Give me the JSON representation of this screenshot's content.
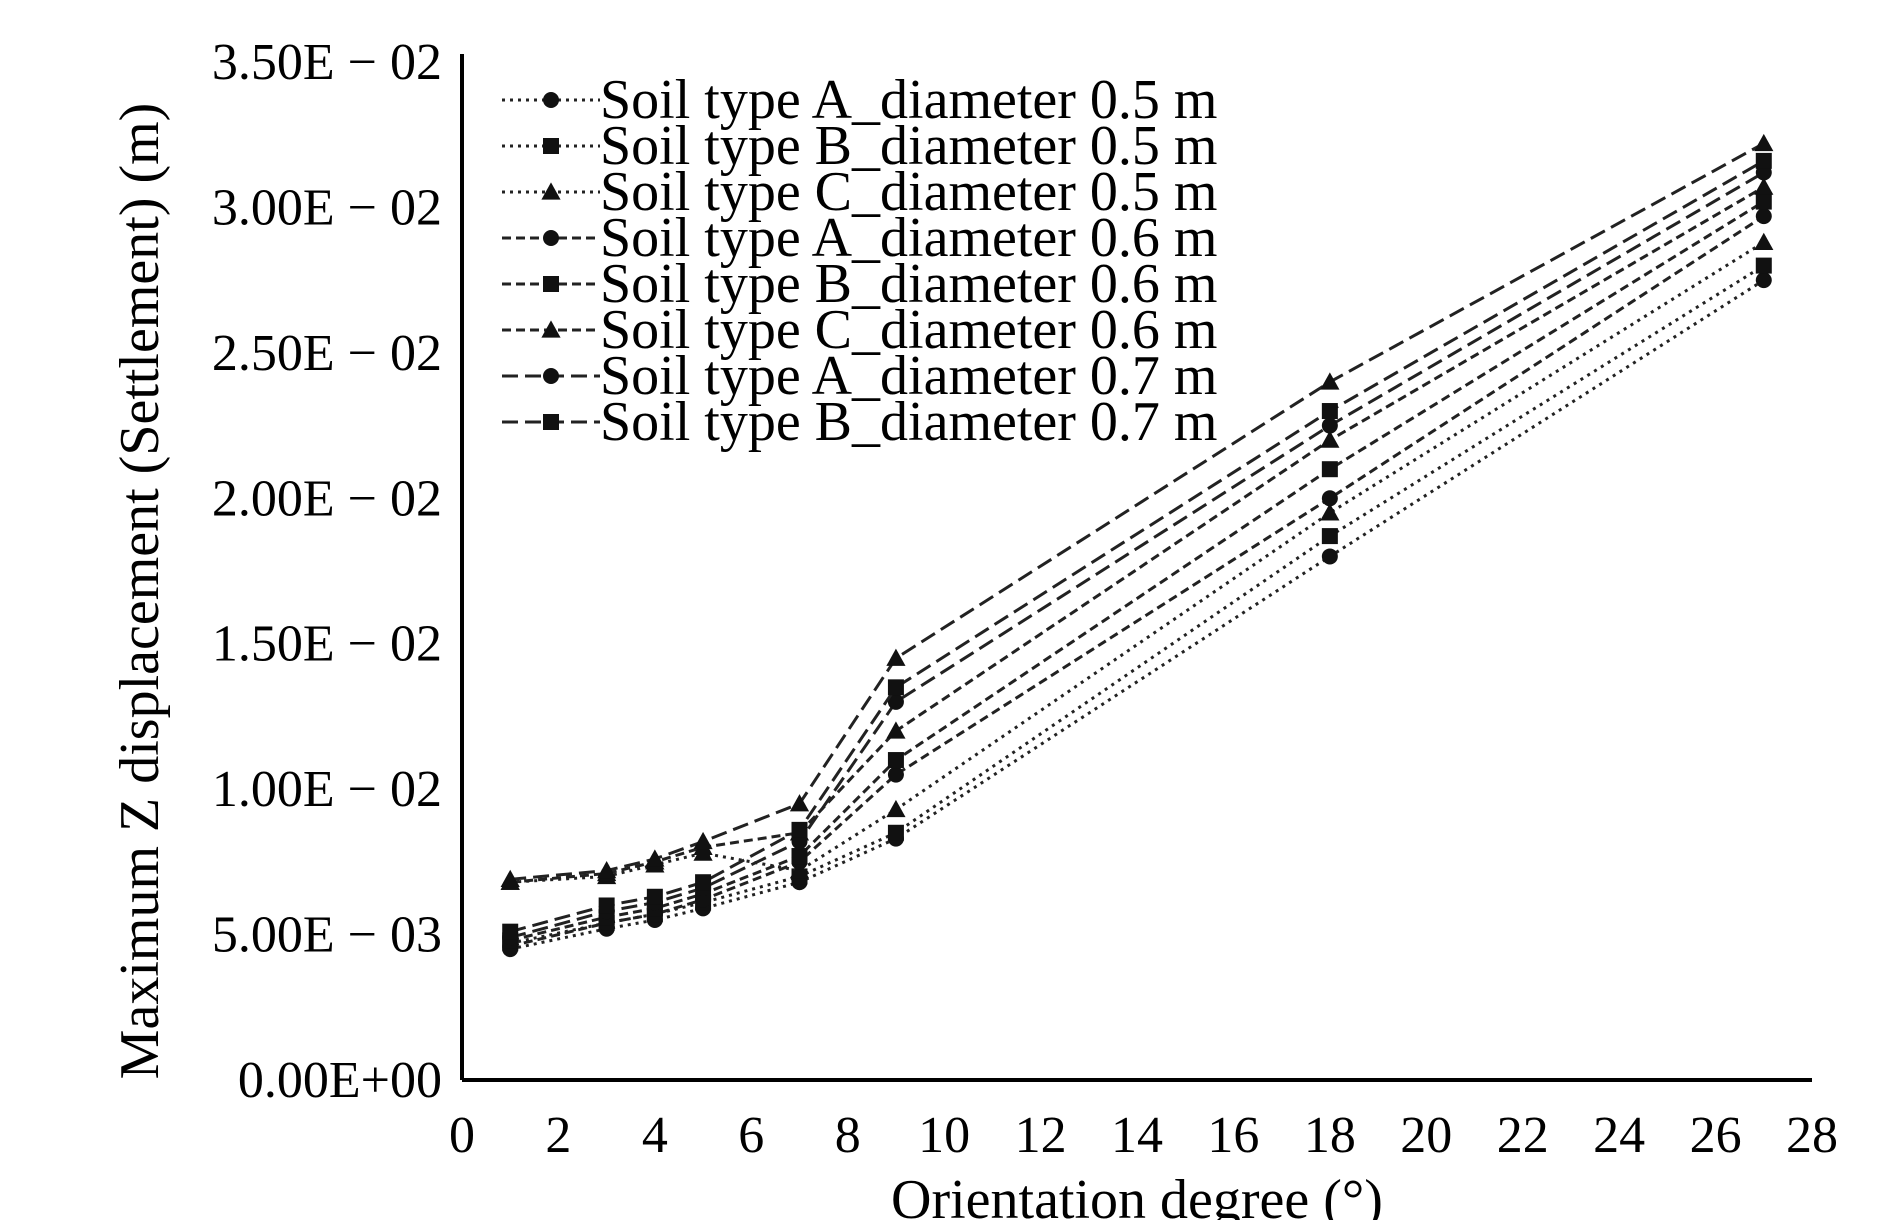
{
  "chart_data": {
    "type": "line",
    "title": "",
    "xlabel": "Orientation degree (°)",
    "ylabel": "Maximum Z displacement (Settlement) (m)",
    "xlim": [
      0,
      28
    ],
    "ylim": [
      0,
      0.035
    ],
    "x_ticks": [
      0,
      2,
      4,
      6,
      8,
      10,
      12,
      14,
      16,
      18,
      20,
      22,
      24,
      26,
      28
    ],
    "x_tick_labels": [
      "0",
      "2",
      "4",
      "6",
      "8",
      "10",
      "12",
      "14",
      "16",
      "18",
      "20",
      "22",
      "24",
      "26",
      "28"
    ],
    "y_ticks": [
      0,
      0.005,
      0.01,
      0.015,
      0.02,
      0.025,
      0.03,
      0.035
    ],
    "y_tick_labels": [
      "0.00E+00",
      "5.00E − 03",
      "1.00E − 02",
      "1.50E − 02",
      "2.00E − 02",
      "2.50E − 02",
      "3.00E − 02",
      "3.50E − 02"
    ],
    "grid": false,
    "legend_position": "top-left",
    "x": [
      1,
      3,
      4,
      5,
      7,
      9,
      18,
      27
    ],
    "series": [
      {
        "name": "Soil type A_diameter 0.5 m",
        "marker": "circle",
        "dash": "dotted",
        "values": [
          0.0045,
          0.0052,
          0.0055,
          0.0059,
          0.0068,
          0.0083,
          0.018,
          0.0275
        ]
      },
      {
        "name": "Soil type B_diameter 0.5 m",
        "marker": "square",
        "dash": "dotted",
        "values": [
          0.0047,
          0.0054,
          0.0057,
          0.0061,
          0.007,
          0.0085,
          0.0187,
          0.028
        ]
      },
      {
        "name": "Soil type C_diameter 0.5 m",
        "marker": "triangle",
        "dash": "dotted",
        "values": [
          0.0068,
          0.007,
          0.0074,
          0.0078,
          0.0072,
          0.0093,
          0.0195,
          0.0288
        ]
      },
      {
        "name": "Soil type A_diameter 0.6 m",
        "marker": "circle",
        "dash": "dashed-short",
        "values": [
          0.0046,
          0.0054,
          0.0057,
          0.0062,
          0.0075,
          0.0105,
          0.02,
          0.0297
        ]
      },
      {
        "name": "Soil type B_diameter 0.6 m",
        "marker": "square",
        "dash": "dashed-short",
        "values": [
          0.0048,
          0.0056,
          0.0059,
          0.0064,
          0.0077,
          0.011,
          0.021,
          0.0302
        ]
      },
      {
        "name": "Soil type C_diameter 0.6 m",
        "marker": "triangle",
        "dash": "dashed-short",
        "values": [
          0.0068,
          0.0071,
          0.0075,
          0.008,
          0.0085,
          0.012,
          0.022,
          0.0307
        ]
      },
      {
        "name": "Soil type A_diameter 0.7 m",
        "marker": "circle",
        "dash": "dashed-long",
        "values": [
          0.0049,
          0.0058,
          0.0061,
          0.0066,
          0.0082,
          0.013,
          0.0225,
          0.0312
        ]
      },
      {
        "name": "Soil type B_diameter 0.7 m",
        "marker": "square",
        "dash": "dashed-long",
        "values": [
          0.0051,
          0.006,
          0.0063,
          0.0068,
          0.0086,
          0.0135,
          0.023,
          0.0316
        ]
      },
      {
        "name": "",
        "marker": "triangle",
        "dash": "dashed-long",
        "values": [
          0.0069,
          0.0072,
          0.0076,
          0.0082,
          0.0095,
          0.0145,
          0.024,
          0.0322
        ]
      }
    ]
  }
}
